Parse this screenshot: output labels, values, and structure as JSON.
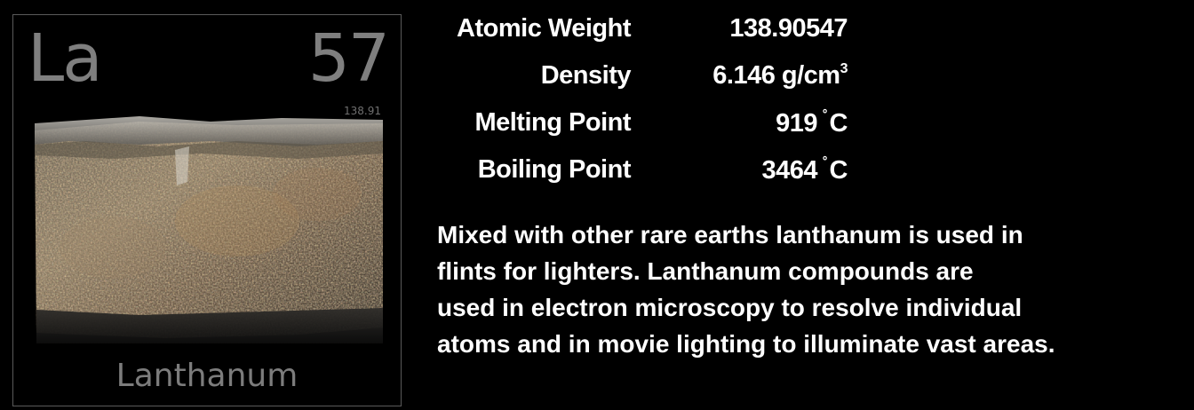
{
  "element": {
    "symbol": "La",
    "atomic_number": "57",
    "atomic_weight_short": "138.91",
    "name": "Lanthanum"
  },
  "properties": {
    "atomic_weight": {
      "label": "Atomic Weight",
      "value": "138.90547"
    },
    "density": {
      "label": "Density",
      "value": "6.146 g/cm",
      "superscript": "3"
    },
    "melting_point": {
      "label": "Melting Point",
      "value": "919",
      "unit": "C"
    },
    "boiling_point": {
      "label": "Boiling Point",
      "value": "3464",
      "unit": "C"
    }
  },
  "description": {
    "lines": [
      "Mixed with other rare earths lanthanum is used in",
      "flints for lighters.  Lanthanum compounds are",
      "used in electron microscopy to resolve individual",
      "atoms and in movie lighting to illuminate vast areas."
    ]
  }
}
